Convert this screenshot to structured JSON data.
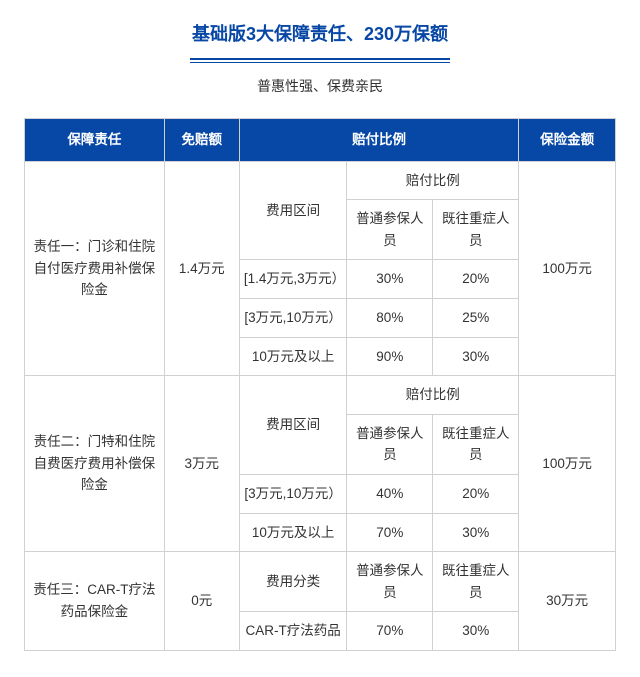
{
  "title": "基础版3大保障责任、230万保额",
  "subtitle": "普惠性强、保费亲民",
  "headers": {
    "responsibility": "保障责任",
    "deductible": "免赔额",
    "ratio": "赔付比例",
    "amount": "保险金额"
  },
  "sub_headers": {
    "ratio_label": "赔付比例",
    "cost_range": "费用区间",
    "cost_category": "费用分类",
    "normal": "普通参保人员",
    "preexisting": "既往重症人员"
  },
  "rows": [
    {
      "responsibility": "责任一：门诊和住院自付医疗费用补偿保险金",
      "deductible": "1.4万元",
      "amount": "100万元",
      "tiers": [
        {
          "range": "[1.4万元,3万元）",
          "normal": "30%",
          "preexisting": "20%"
        },
        {
          "range": "[3万元,10万元）",
          "normal": "80%",
          "preexisting": "25%"
        },
        {
          "range": "10万元及以上",
          "normal": "90%",
          "preexisting": "30%"
        }
      ]
    },
    {
      "responsibility": "责任二：门特和住院自费医疗费用补偿保险金",
      "deductible": "3万元",
      "amount": "100万元",
      "tiers": [
        {
          "range": "[3万元,10万元）",
          "normal": "40%",
          "preexisting": "20%"
        },
        {
          "range": "10万元及以上",
          "normal": "70%",
          "preexisting": "30%"
        }
      ]
    },
    {
      "responsibility": "责任三：CAR-T疗法药品保险金",
      "deductible": "0元",
      "amount": "30万元",
      "category_label": "费用分类",
      "tiers": [
        {
          "range": "CAR-T疗法药品",
          "normal": "70%",
          "preexisting": "30%"
        }
      ]
    }
  ],
  "colors": {
    "header_bg": "#0747A6",
    "header_text": "#ffffff",
    "border": "#d0d0d0",
    "title": "#0747A6"
  }
}
